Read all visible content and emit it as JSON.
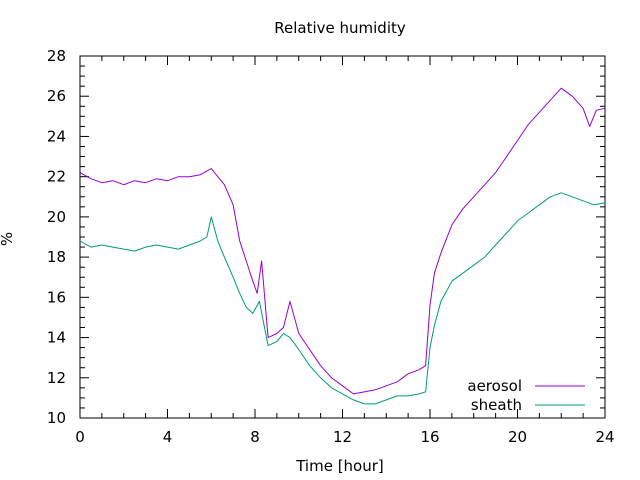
{
  "chart_data": {
    "type": "line",
    "title": "Relative humidity",
    "xlabel": "Time [hour]",
    "ylabel": "%",
    "xlim": [
      0,
      24
    ],
    "ylim": [
      10,
      28
    ],
    "xticks": [
      0,
      4,
      8,
      12,
      16,
      20,
      24
    ],
    "yticks": [
      10,
      12,
      14,
      16,
      18,
      20,
      22,
      24,
      26,
      28
    ],
    "grid": false,
    "legend_position": "bottom-right",
    "series": [
      {
        "name": "aerosol",
        "color": "#9400d3",
        "x": [
          0,
          0.5,
          1,
          1.5,
          2,
          2.5,
          3,
          3.5,
          4,
          4.5,
          5,
          5.5,
          6,
          6.3,
          6.6,
          7,
          7.3,
          7.6,
          7.9,
          8.1,
          8.3,
          8.6,
          9,
          9.3,
          9.6,
          10,
          10.5,
          11,
          11.5,
          12,
          12.5,
          13,
          13.5,
          14,
          14.5,
          15,
          15.5,
          15.8,
          16,
          16.2,
          16.5,
          17,
          17.5,
          18,
          18.5,
          19,
          19.5,
          20,
          20.5,
          21,
          21.5,
          22,
          22.5,
          23,
          23.3,
          23.6,
          24
        ],
        "values": [
          22.2,
          21.9,
          21.7,
          21.8,
          21.6,
          21.8,
          21.7,
          21.9,
          21.8,
          22.0,
          22.0,
          22.1,
          22.4,
          22.0,
          21.6,
          20.6,
          18.8,
          17.8,
          16.8,
          16.2,
          17.8,
          14.0,
          14.2,
          14.5,
          15.8,
          14.2,
          13.4,
          12.6,
          12.0,
          11.6,
          11.2,
          11.3,
          11.4,
          11.6,
          11.8,
          12.2,
          12.4,
          12.6,
          15.6,
          17.2,
          18.2,
          19.6,
          20.4,
          21.0,
          21.6,
          22.2,
          23.0,
          23.8,
          24.6,
          25.2,
          25.8,
          26.4,
          26.0,
          25.4,
          24.5,
          25.3,
          25.4
        ]
      },
      {
        "name": "sheath",
        "color": "#009e73",
        "x": [
          0,
          0.5,
          1,
          1.5,
          2,
          2.5,
          3,
          3.5,
          4,
          4.5,
          5,
          5.5,
          5.8,
          6,
          6.3,
          6.6,
          7,
          7.3,
          7.6,
          7.9,
          8.2,
          8.6,
          9,
          9.3,
          9.6,
          10,
          10.5,
          11,
          11.5,
          12,
          12.5,
          13,
          13.5,
          14,
          14.5,
          15,
          15.5,
          15.8,
          16,
          16.2,
          16.5,
          17,
          17.5,
          18,
          18.5,
          19,
          19.5,
          20,
          20.5,
          21,
          21.5,
          22,
          22.5,
          23,
          23.5,
          24
        ],
        "values": [
          18.8,
          18.5,
          18.6,
          18.5,
          18.4,
          18.3,
          18.5,
          18.6,
          18.5,
          18.4,
          18.6,
          18.8,
          19.0,
          20.0,
          18.8,
          18.0,
          17.0,
          16.2,
          15.5,
          15.2,
          15.8,
          13.6,
          13.8,
          14.2,
          14.0,
          13.4,
          12.6,
          12.0,
          11.5,
          11.2,
          10.9,
          10.7,
          10.7,
          10.9,
          11.1,
          11.1,
          11.2,
          11.3,
          13.5,
          14.6,
          15.8,
          16.8,
          17.2,
          17.6,
          18.0,
          18.6,
          19.2,
          19.8,
          20.2,
          20.6,
          21.0,
          21.2,
          21.0,
          20.8,
          20.6,
          20.7
        ]
      }
    ]
  }
}
